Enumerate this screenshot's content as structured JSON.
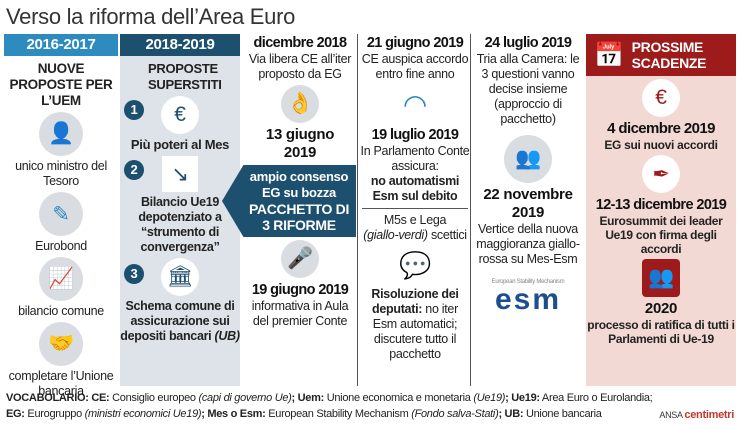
{
  "title": "Verso la riforma dell’Area Euro",
  "col1": {
    "header": "2016-2017",
    "subtitle": "NUOVE PROPOSTE PER L’UEM",
    "items": [
      "unico ministro del Tesoro",
      "Eurobond",
      "bilancio comune",
      "completare l’Unione bancaria"
    ]
  },
  "col2": {
    "header": "2018-2019",
    "subtitle": "PROPOSTE SUPERSTITI",
    "items": [
      {
        "num": "1",
        "text": "Più poteri al Mes"
      },
      {
        "num": "2",
        "text": "Bilancio Ue19 depotenziato a “strumento di convergenza”"
      },
      {
        "num": "3",
        "text": "Schema comune di assicurazione sui depositi bancari",
        "tag": "(UB)"
      }
    ]
  },
  "col3": {
    "date1": "dicembre 2018",
    "text1": "Via libera CE all’iter proposto da EG",
    "date2": "13 giugno 2019",
    "arrow1": "ampio consenso EG su bozza",
    "arrow2": "PACCHETTO DI 3 RIFORME",
    "date3": "19 giugno 2019",
    "text3": "informativa in Aula del premier Conte"
  },
  "col4": {
    "date1": "21 giugno 2019",
    "text1": "CE auspica accordo entro fine anno",
    "date2": "19 luglio 2019",
    "text2": "In Parlamento Conte assicura:",
    "text2b": "no automatismi Esm sul debito",
    "text3a": "M5s e Lega",
    "text3b": "(giallo-verdi)",
    "text3c": "scettici",
    "text4a": "Risoluzione dei deputati:",
    "text4b": "no iter Esm automatici; discutere tutto il pacchetto"
  },
  "col5": {
    "date1": "24 luglio 2019",
    "text1": "Tria alla Camera: le 3 questioni vanno decise insieme (approccio di pacchetto)",
    "date2": "22 novembre 2019",
    "text2": "Vertice della nuova maggioranza giallo-rossa su Mes-Esm",
    "logo_caption": "European Stability Mechanism",
    "logo": "esm"
  },
  "col6": {
    "header": "PROSSIME SCADENZE",
    "date1": "4 dicembre 2019",
    "text1": "EG sui nuovi accordi",
    "date2": "12-13 dicembre 2019",
    "text2": "Eurosummit dei leader Ue19 con firma degli accordi",
    "date3": "2020",
    "text3": "processo di ratifica di tutti i Parlamenti di Ue-19"
  },
  "vocab": {
    "line1": [
      {
        "k": "VOCABOLARIO: ",
        "t": ""
      },
      {
        "k": "CE:",
        "t": " Consiglio europeo ",
        "i": "(capi di governo Ue)"
      },
      {
        "k": "; Uem:",
        "t": " Unione economica e monetaria ",
        "i": "(Ue19)"
      },
      {
        "k": "; Ue19:",
        "t": " Area Euro o Eurolandia;"
      }
    ],
    "line2": [
      {
        "k": "EG:",
        "t": " Eurogruppo ",
        "i": "(ministri economici Ue19)"
      },
      {
        "k": "; Mes o Esm:",
        "t": " European Stability Mechanism ",
        "i": "(Fondo salva-Stati)"
      },
      {
        "k": "; UB:",
        "t": " Unione bancaria"
      }
    ]
  },
  "credit": {
    "ansa": "ANSA",
    "brand": "centimetri"
  },
  "colors": {
    "blue_light": "#2e8bc0",
    "blue_dark": "#1d4f6e",
    "red": "#9e1b1b",
    "pink": "#f2d9d3",
    "gray": "#dde3e8"
  }
}
